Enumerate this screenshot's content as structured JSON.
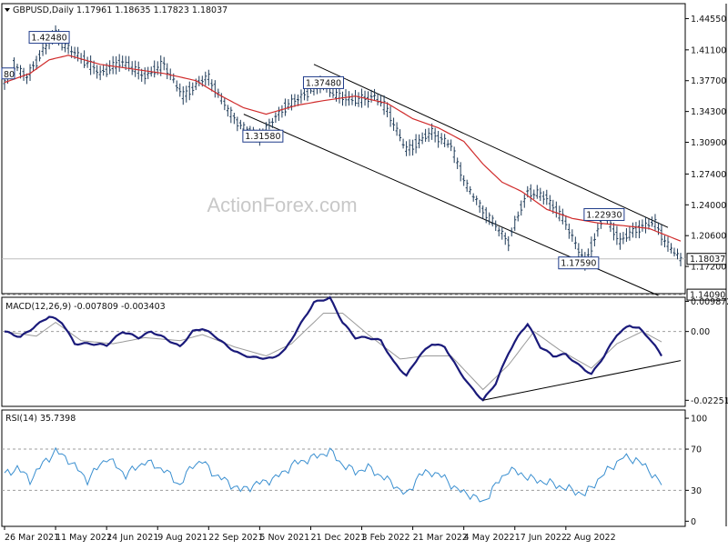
{
  "chart_data": [
    {
      "panel": "price",
      "type": "ohlc",
      "title": "GBPUSD,Daily  1.17961 1.18635 1.17823 1.18037",
      "ylim": [
        1.142,
        1.462
      ],
      "y_ticks": [
        "1.44550",
        "1.41100",
        "1.37700",
        "1.34300",
        "1.30900",
        "1.27400",
        "1.24000",
        "1.20600",
        "1.17200"
      ],
      "y_tick_values": [
        1.4455,
        1.411,
        1.377,
        1.343,
        1.309,
        1.274,
        1.24,
        1.206,
        1.172
      ],
      "current_price_label": "1.18037",
      "current_price": 1.18037,
      "support_label": "1.14090",
      "support_level": 1.1409,
      "left_edge_label": "80",
      "left_edge_value": 1.385,
      "price_path_points": [
        [
          0,
          1.375
        ],
        [
          3,
          1.395
        ],
        [
          7,
          1.381
        ],
        [
          12,
          1.41
        ],
        [
          16,
          1.43
        ],
        [
          18,
          1.418
        ],
        [
          23,
          1.405
        ],
        [
          30,
          1.385
        ],
        [
          37,
          1.398
        ],
        [
          44,
          1.382
        ],
        [
          50,
          1.395
        ],
        [
          56,
          1.36
        ],
        [
          62,
          1.378
        ],
        [
          64,
          1.38
        ],
        [
          71,
          1.34
        ],
        [
          75,
          1.325
        ],
        [
          80,
          1.3158
        ],
        [
          87,
          1.345
        ],
        [
          94,
          1.362
        ],
        [
          100,
          1.3748
        ],
        [
          104,
          1.36
        ],
        [
          111,
          1.355
        ],
        [
          116,
          1.36
        ],
        [
          120,
          1.345
        ],
        [
          126,
          1.3
        ],
        [
          134,
          1.32
        ],
        [
          140,
          1.305
        ],
        [
          145,
          1.26
        ],
        [
          151,
          1.23
        ],
        [
          158,
          1.2
        ],
        [
          164,
          1.255
        ],
        [
          170,
          1.248
        ],
        [
          176,
          1.22
        ],
        [
          182,
          1.1759
        ],
        [
          188,
          1.2293
        ],
        [
          193,
          1.2
        ],
        [
          199,
          1.215
        ],
        [
          204,
          1.22
        ],
        [
          208,
          1.195
        ],
        [
          212,
          1.1804
        ]
      ],
      "ema_points": [
        [
          0,
          1.375
        ],
        [
          8,
          1.385
        ],
        [
          14,
          1.4
        ],
        [
          20,
          1.405
        ],
        [
          30,
          1.395
        ],
        [
          40,
          1.39
        ],
        [
          50,
          1.385
        ],
        [
          60,
          1.377
        ],
        [
          68,
          1.36
        ],
        [
          75,
          1.347
        ],
        [
          82,
          1.34
        ],
        [
          92,
          1.35
        ],
        [
          100,
          1.355
        ],
        [
          110,
          1.36
        ],
        [
          120,
          1.352
        ],
        [
          128,
          1.335
        ],
        [
          136,
          1.325
        ],
        [
          144,
          1.31
        ],
        [
          150,
          1.285
        ],
        [
          156,
          1.265
        ],
        [
          162,
          1.255
        ],
        [
          170,
          1.235
        ],
        [
          178,
          1.225
        ],
        [
          186,
          1.22
        ],
        [
          194,
          1.217
        ],
        [
          202,
          1.214
        ],
        [
          212,
          1.2
        ]
      ],
      "channel_upper": [
        [
          97,
          1.395
        ],
        [
          208,
          1.215
        ]
      ],
      "channel_lower": [
        [
          75,
          1.34
        ],
        [
          205,
          1.14
        ]
      ],
      "annotations": [
        {
          "label": "1.42480",
          "value": 1.4248,
          "bar": 14
        },
        {
          "label": "1.37480",
          "value": 1.3748,
          "bar": 100
        },
        {
          "label": "1.31580",
          "value": 1.3158,
          "bar": 81
        },
        {
          "label": "1.22930",
          "value": 1.2293,
          "bar": 188
        },
        {
          "label": "1.17590",
          "value": 1.1759,
          "bar": 180
        }
      ],
      "watermark": "ActionForex.com"
    },
    {
      "panel": "macd",
      "type": "line",
      "title": "MACD(12,26,9) -0.007809 -0.003403",
      "ylim": [
        -0.0245,
        0.0112
      ],
      "y_ticks": [
        "0.009872",
        "0.00",
        "-0.022516"
      ],
      "y_tick_values": [
        0.009872,
        0.0,
        -0.022516
      ],
      "macd_points": [
        [
          0,
          0.0
        ],
        [
          5,
          -0.0018
        ],
        [
          10,
          0.002
        ],
        [
          14,
          0.005
        ],
        [
          18,
          0.003
        ],
        [
          22,
          -0.004
        ],
        [
          27,
          -0.004
        ],
        [
          32,
          -0.0045
        ],
        [
          37,
          0.0
        ],
        [
          42,
          -0.002
        ],
        [
          46,
          0.0
        ],
        [
          50,
          -0.002
        ],
        [
          55,
          -0.005
        ],
        [
          59,
          0.0
        ],
        [
          62,
          0.001
        ],
        [
          66,
          -0.0015
        ],
        [
          70,
          -0.005
        ],
        [
          74,
          -0.0075
        ],
        [
          78,
          -0.0085
        ],
        [
          84,
          -0.0088
        ],
        [
          88,
          -0.006
        ],
        [
          92,
          0.001
        ],
        [
          97,
          0.0095
        ],
        [
          102,
          0.011
        ],
        [
          106,
          0.003
        ],
        [
          110,
          -0.002
        ],
        [
          114,
          -0.002
        ],
        [
          118,
          -0.003
        ],
        [
          122,
          -0.01
        ],
        [
          126,
          -0.0145
        ],
        [
          130,
          -0.008
        ],
        [
          134,
          -0.004
        ],
        [
          138,
          -0.005
        ],
        [
          142,
          -0.012
        ],
        [
          146,
          -0.018
        ],
        [
          150,
          -0.0225
        ],
        [
          154,
          -0.017
        ],
        [
          158,
          -0.007
        ],
        [
          162,
          0.0
        ],
        [
          164,
          0.0025
        ],
        [
          168,
          -0.005
        ],
        [
          172,
          -0.008
        ],
        [
          176,
          -0.0075
        ],
        [
          180,
          -0.011
        ],
        [
          184,
          -0.014
        ],
        [
          188,
          -0.008
        ],
        [
          192,
          -0.001
        ],
        [
          196,
          0.002
        ],
        [
          199,
          0.001
        ],
        [
          202,
          -0.002
        ],
        [
          206,
          -0.0078
        ]
      ],
      "signal_points": [
        [
          0,
          0.0
        ],
        [
          10,
          -0.0015
        ],
        [
          16,
          0.003
        ],
        [
          24,
          -0.003
        ],
        [
          34,
          -0.004
        ],
        [
          44,
          -0.002
        ],
        [
          55,
          -0.003
        ],
        [
          62,
          -0.001
        ],
        [
          72,
          -0.005
        ],
        [
          82,
          -0.008
        ],
        [
          90,
          -0.004
        ],
        [
          100,
          0.006
        ],
        [
          106,
          0.006
        ],
        [
          114,
          -0.001
        ],
        [
          124,
          -0.009
        ],
        [
          132,
          -0.008
        ],
        [
          140,
          -0.008
        ],
        [
          150,
          -0.019
        ],
        [
          158,
          -0.011
        ],
        [
          166,
          0.0
        ],
        [
          174,
          -0.006
        ],
        [
          184,
          -0.012
        ],
        [
          192,
          -0.004
        ],
        [
          200,
          0.0
        ],
        [
          206,
          -0.0034
        ]
      ],
      "trendline": [
        [
          150,
          -0.0225
        ],
        [
          212,
          -0.0095
        ]
      ]
    },
    {
      "panel": "rsi",
      "type": "line",
      "title": "RSI(14) 35.7398",
      "ylim": [
        -5,
        108
      ],
      "y_ticks": [
        "100",
        "70",
        "30",
        "0"
      ],
      "y_tick_values": [
        100,
        70,
        30,
        0
      ],
      "levels": [
        70,
        30
      ],
      "rsi_points": [
        [
          0,
          45
        ],
        [
          4,
          52
        ],
        [
          8,
          40
        ],
        [
          12,
          56
        ],
        [
          16,
          68
        ],
        [
          20,
          60
        ],
        [
          26,
          40
        ],
        [
          32,
          62
        ],
        [
          38,
          45
        ],
        [
          44,
          58
        ],
        [
          50,
          50
        ],
        [
          55,
          35
        ],
        [
          59,
          55
        ],
        [
          62,
          58
        ],
        [
          66,
          45
        ],
        [
          70,
          38
        ],
        [
          74,
          30
        ],
        [
          79,
          36
        ],
        [
          85,
          42
        ],
        [
          91,
          56
        ],
        [
          97,
          62
        ],
        [
          102,
          68
        ],
        [
          106,
          55
        ],
        [
          110,
          48
        ],
        [
          114,
          52
        ],
        [
          118,
          44
        ],
        [
          122,
          36
        ],
        [
          126,
          25
        ],
        [
          130,
          45
        ],
        [
          134,
          48
        ],
        [
          138,
          42
        ],
        [
          142,
          30
        ],
        [
          146,
          26
        ],
        [
          150,
          18
        ],
        [
          154,
          35
        ],
        [
          158,
          50
        ],
        [
          162,
          46
        ],
        [
          166,
          40
        ],
        [
          170,
          38
        ],
        [
          174,
          34
        ],
        [
          178,
          30
        ],
        [
          182,
          26
        ],
        [
          186,
          40
        ],
        [
          190,
          52
        ],
        [
          194,
          62
        ],
        [
          198,
          60
        ],
        [
          202,
          50
        ],
        [
          206,
          35.7398
        ]
      ]
    }
  ],
  "x_axis": {
    "tick_labels": [
      "26 Mar 2021",
      "11 May 2021",
      "24 Jun 2021",
      "9 Aug 2021",
      "22 Sep 2021",
      "5 Nov 2021",
      "21 Dec 2021",
      "3 Feb 2022",
      "21 Mar 2022",
      "4 May 2022",
      "17 Jun 2022",
      "2 Aug 2022"
    ],
    "tick_bars": [
      0,
      16,
      32,
      48,
      64,
      80,
      96,
      112,
      128,
      144,
      160,
      176
    ],
    "total_bars": 213
  },
  "colors": {
    "bars": "#1f3b58",
    "ema": "#d02b2b",
    "macd": "#1a1a7a",
    "signal": "#9a9a9a",
    "rsi": "#3a8fd0",
    "channel": "#000000",
    "grid_dash": "#9e9e9e",
    "watermark": "#c8c8c8"
  }
}
